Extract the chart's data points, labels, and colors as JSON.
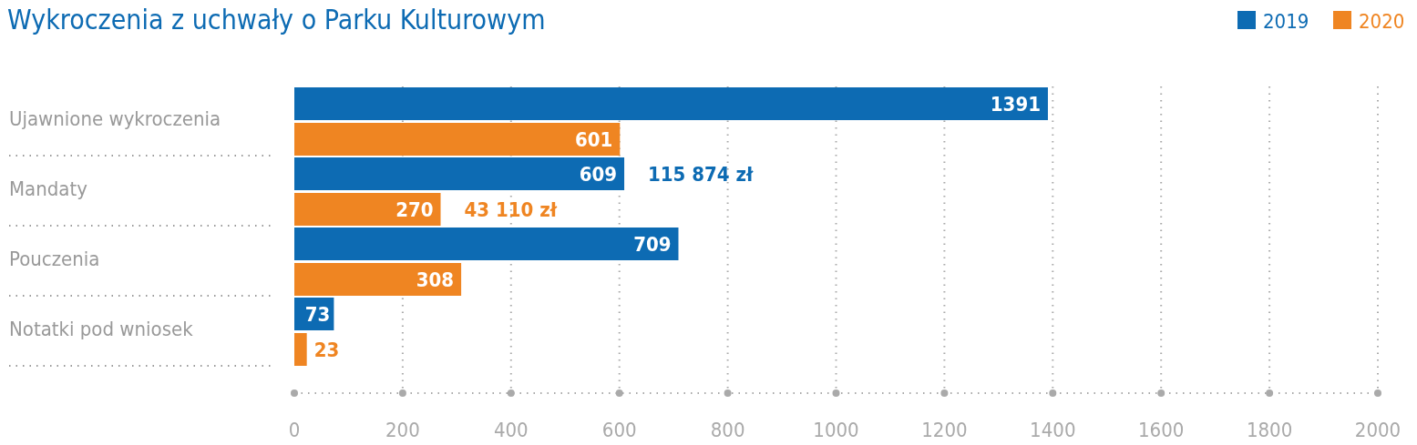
{
  "chart_data": {
    "type": "bar",
    "orientation": "horizontal",
    "title": "Wykroczenia z uchwały o Parku Kulturowym",
    "categories": [
      "Ujawnione wykroczenia",
      "Mandaty",
      "Pouczenia",
      "Notatki pod wniosek"
    ],
    "series": [
      {
        "name": "2019",
        "color": "#0d6bb3",
        "values": [
          1391,
          609,
          709,
          73
        ]
      },
      {
        "name": "2020",
        "color": "#ef8522",
        "values": [
          601,
          270,
          308,
          23
        ]
      }
    ],
    "xlim": [
      0,
      2000
    ],
    "xticks": [
      0,
      200,
      400,
      600,
      800,
      1000,
      1200,
      1400,
      1600,
      1800,
      2000
    ],
    "grid": "x",
    "legend": "top right",
    "data_labels": true,
    "annotations": [
      {
        "text": "115 874 zł",
        "x": 609,
        "y": "Mandaty"
      },
      {
        "text": "43 110 zł",
        "x": 270,
        "y": "Mandaty"
      }
    ]
  }
}
